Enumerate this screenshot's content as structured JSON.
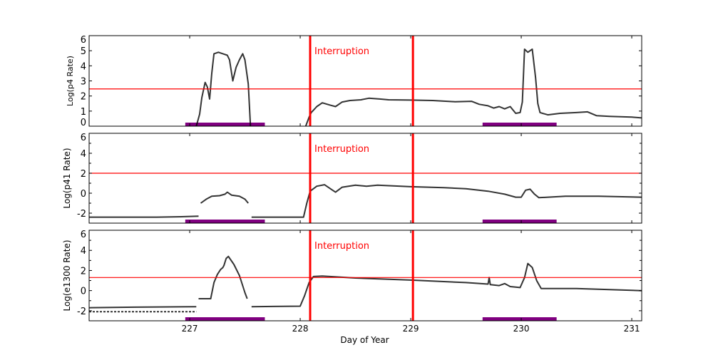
{
  "chart_data": [
    {
      "type": "line",
      "ylabel": "Log(p4 Rate)",
      "xlim": [
        226.09,
        231.09
      ],
      "ylim": [
        0,
        6
      ],
      "yticks": [
        0,
        1,
        2,
        3,
        4,
        5,
        6
      ],
      "yminor": [],
      "threshold": 2.47,
      "annotation": "Interruption",
      "series": [
        {
          "points": [
            [
              227.06,
              0
            ],
            [
              227.09,
              0.8
            ],
            [
              227.11,
              1.9
            ],
            [
              227.14,
              2.9
            ],
            [
              227.16,
              2.6
            ],
            [
              227.18,
              1.8
            ],
            [
              227.2,
              3.5
            ],
            [
              227.22,
              4.8
            ],
            [
              227.26,
              4.9
            ],
            [
              227.3,
              4.8
            ],
            [
              227.34,
              4.7
            ],
            [
              227.36,
              4.4
            ],
            [
              227.39,
              3.0
            ],
            [
              227.42,
              3.9
            ],
            [
              227.45,
              4.4
            ],
            [
              227.48,
              4.8
            ],
            [
              227.5,
              4.4
            ],
            [
              227.53,
              2.8
            ],
            [
              227.55,
              0
            ]
          ]
        },
        {
          "points": [
            [
              228.05,
              0
            ],
            [
              228.08,
              0.6
            ],
            [
              228.1,
              0.9
            ],
            [
              228.15,
              1.3
            ],
            [
              228.2,
              1.55
            ],
            [
              228.27,
              1.4
            ],
            [
              228.32,
              1.3
            ],
            [
              228.38,
              1.6
            ],
            [
              228.45,
              1.7
            ],
            [
              228.55,
              1.75
            ],
            [
              228.62,
              1.85
            ],
            [
              228.72,
              1.8
            ],
            [
              228.8,
              1.75
            ],
            [
              229.0,
              1.73
            ],
            [
              229.2,
              1.7
            ],
            [
              229.4,
              1.62
            ],
            [
              229.55,
              1.65
            ],
            [
              229.62,
              1.45
            ],
            [
              229.7,
              1.35
            ],
            [
              229.75,
              1.2
            ],
            [
              229.8,
              1.3
            ],
            [
              229.85,
              1.15
            ],
            [
              229.9,
              1.3
            ],
            [
              229.95,
              0.85
            ],
            [
              229.99,
              0.9
            ],
            [
              230.01,
              1.6
            ],
            [
              230.03,
              5.1
            ],
            [
              230.06,
              4.9
            ],
            [
              230.1,
              5.1
            ],
            [
              230.13,
              3.2
            ],
            [
              230.15,
              1.5
            ],
            [
              230.17,
              0.9
            ],
            [
              230.24,
              0.75
            ],
            [
              230.35,
              0.85
            ],
            [
              230.5,
              0.9
            ],
            [
              230.6,
              0.95
            ],
            [
              230.68,
              0.7
            ],
            [
              230.8,
              0.65
            ],
            [
              231.0,
              0.6
            ],
            [
              231.09,
              0.55
            ]
          ]
        }
      ]
    },
    {
      "type": "line",
      "ylabel": "Log(p41 Rate)",
      "xlim": [
        226.09,
        231.09
      ],
      "ylim": [
        -3,
        6
      ],
      "yticks": [
        -2,
        0,
        2,
        4,
        6
      ],
      "yminor": [
        -3,
        -1,
        1,
        3,
        5
      ],
      "threshold": 2.0,
      "annotation": "Interruption",
      "series": [
        {
          "points": [
            [
              226.09,
              -2.4
            ],
            [
              226.7,
              -2.4
            ],
            [
              226.95,
              -2.35
            ],
            [
              227.08,
              -2.3
            ]
          ]
        },
        {
          "points": [
            [
              227.1,
              -1.0
            ],
            [
              227.15,
              -0.6
            ],
            [
              227.2,
              -0.3
            ],
            [
              227.27,
              -0.25
            ],
            [
              227.32,
              -0.1
            ],
            [
              227.34,
              0.1
            ],
            [
              227.38,
              -0.2
            ],
            [
              227.45,
              -0.3
            ],
            [
              227.5,
              -0.6
            ],
            [
              227.53,
              -1.0
            ]
          ]
        },
        {
          "points": [
            [
              227.56,
              -2.4
            ],
            [
              228.03,
              -2.4
            ],
            [
              228.06,
              -1.0
            ],
            [
              228.09,
              0.2
            ],
            [
              228.15,
              0.7
            ],
            [
              228.22,
              0.85
            ],
            [
              228.28,
              0.4
            ],
            [
              228.32,
              0.1
            ],
            [
              228.38,
              0.6
            ],
            [
              228.5,
              0.8
            ],
            [
              228.6,
              0.7
            ],
            [
              228.7,
              0.8
            ],
            [
              229.0,
              0.65
            ],
            [
              229.3,
              0.55
            ],
            [
              229.5,
              0.45
            ],
            [
              229.7,
              0.2
            ],
            [
              229.85,
              -0.1
            ],
            [
              229.95,
              -0.4
            ],
            [
              230.0,
              -0.4
            ],
            [
              230.04,
              0.3
            ],
            [
              230.08,
              0.4
            ],
            [
              230.12,
              -0.1
            ],
            [
              230.16,
              -0.45
            ],
            [
              230.4,
              -0.3
            ],
            [
              230.7,
              -0.3
            ],
            [
              231.09,
              -0.4
            ]
          ]
        }
      ]
    },
    {
      "type": "line",
      "xlabel": "Day of Year",
      "ylabel": "Log(e1300 Rate)",
      "xlim": [
        226.09,
        231.09
      ],
      "ylim": [
        -3,
        6
      ],
      "xticks": [
        227,
        228,
        229,
        230,
        231
      ],
      "yticks": [
        -2,
        0,
        2,
        4,
        6
      ],
      "yminor": [
        -3,
        -1,
        1,
        3,
        5
      ],
      "threshold": 1.3,
      "annotation": "Interruption",
      "series": [
        {
          "points": [
            [
              226.09,
              -1.7
            ],
            [
              226.5,
              -1.65
            ],
            [
              227.06,
              -1.6
            ]
          ]
        },
        {
          "points": [
            [
              226.09,
              -2.1
            ],
            [
              227.06,
              -2.1
            ]
          ]
        },
        {
          "points": [
            [
              227.08,
              -0.8
            ],
            [
              227.19,
              -0.8
            ],
            [
              227.22,
              0.8
            ],
            [
              227.25,
              1.6
            ],
            [
              227.28,
              2.1
            ],
            [
              227.3,
              2.3
            ],
            [
              227.31,
              2.5
            ],
            [
              227.33,
              3.2
            ],
            [
              227.35,
              3.4
            ],
            [
              227.4,
              2.6
            ],
            [
              227.45,
              1.5
            ],
            [
              227.5,
              -0.2
            ],
            [
              227.52,
              -0.8
            ]
          ]
        },
        {
          "points": [
            [
              227.56,
              -1.6
            ],
            [
              228.0,
              -1.55
            ],
            [
              228.04,
              -0.5
            ],
            [
              228.08,
              0.8
            ],
            [
              228.12,
              1.4
            ],
            [
              228.2,
              1.45
            ],
            [
              228.5,
              1.25
            ],
            [
              229.0,
              1.05
            ],
            [
              229.5,
              0.8
            ],
            [
              229.7,
              0.65
            ],
            [
              229.71,
              1.3
            ],
            [
              229.72,
              0.6
            ],
            [
              229.8,
              0.5
            ],
            [
              229.85,
              0.7
            ],
            [
              229.9,
              0.4
            ],
            [
              229.99,
              0.3
            ],
            [
              230.03,
              1.3
            ],
            [
              230.06,
              2.7
            ],
            [
              230.1,
              2.3
            ],
            [
              230.14,
              1.0
            ],
            [
              230.18,
              0.2
            ],
            [
              230.5,
              0.2
            ],
            [
              230.8,
              0.1
            ],
            [
              231.09,
              0.0
            ]
          ]
        }
      ]
    }
  ],
  "events": {
    "interruption_lines": [
      228.09,
      229.02
    ],
    "highlight_intervals": [
      [
        226.96,
        227.68
      ],
      [
        229.65,
        230.32
      ]
    ]
  },
  "colors": {
    "data": "#000000",
    "threshold": "#ff0000",
    "interruption": "#ff0000",
    "highlight": "#800080",
    "axes": "#000000"
  }
}
